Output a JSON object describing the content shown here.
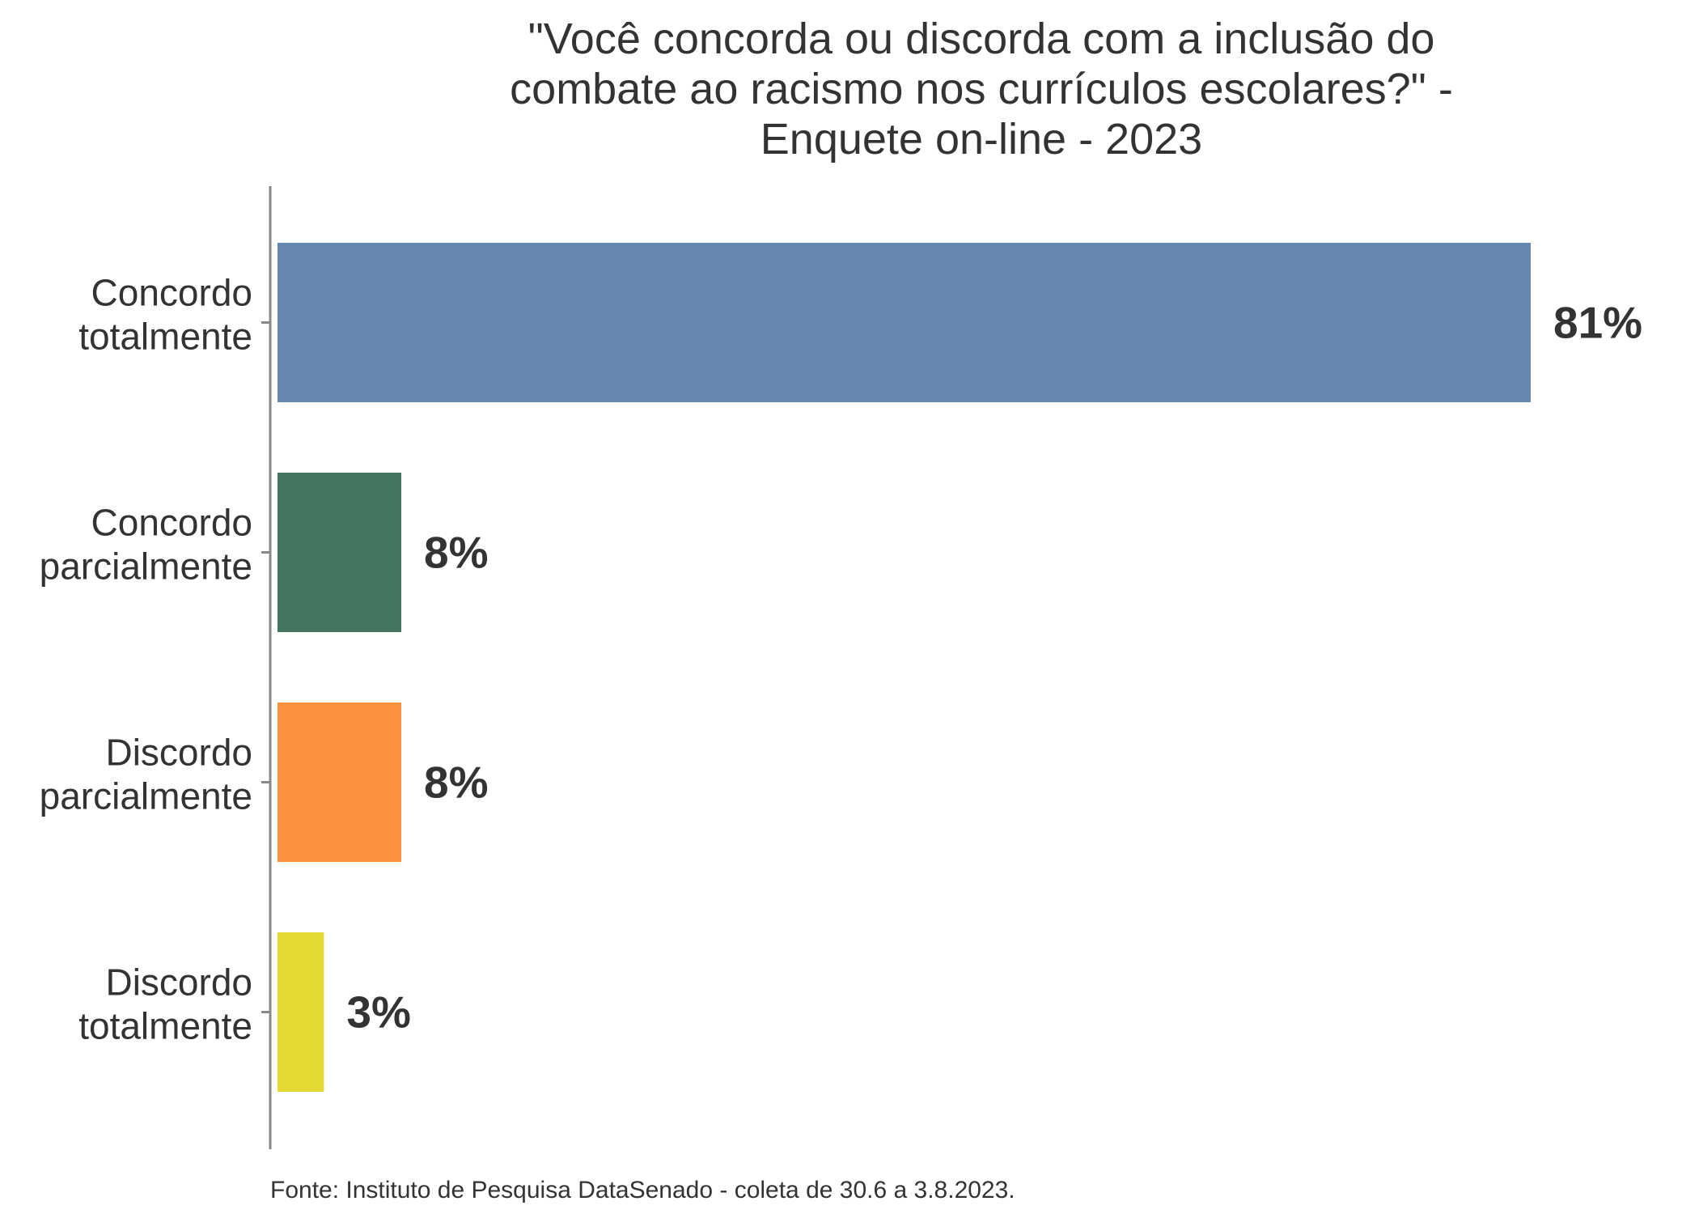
{
  "chart_data": {
    "type": "bar",
    "orientation": "horizontal",
    "title_lines": [
      "\"Você concorda ou discorda com a inclusão do",
      "combate ao racismo nos currículos escolares?\" -",
      "Enquete on-line - 2023"
    ],
    "categories": [
      [
        "Concordo",
        "totalmente"
      ],
      [
        "Concordo",
        "parcialmente"
      ],
      [
        "Discordo",
        "parcialmente"
      ],
      [
        "Discordo",
        "totalmente"
      ]
    ],
    "values": [
      81,
      8,
      8,
      3
    ],
    "value_labels": [
      "81%",
      "8%",
      "8%",
      "3%"
    ],
    "colors": [
      "#6688b0",
      "#447561",
      "#fa913c",
      "#e5d936"
    ],
    "xlim": [
      0,
      81
    ],
    "grid": false,
    "legend": "none",
    "source": "Fonte: Instituto de Pesquisa DataSenado - coleta de 30.6 a 3.8.2023."
  }
}
